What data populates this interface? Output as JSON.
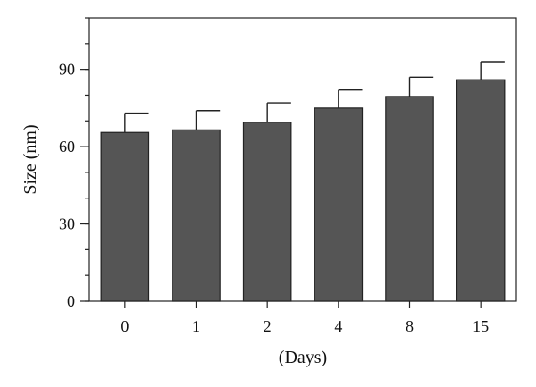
{
  "chart_data": {
    "type": "bar",
    "xlabel": "(Days)",
    "ylabel": "Size (nm)",
    "categories": [
      "0",
      "1",
      "2",
      "4",
      "8",
      "15"
    ],
    "values": [
      65.5,
      66.5,
      69.5,
      75,
      79.5,
      86
    ],
    "error_upper": [
      7.5,
      7.5,
      7.5,
      7,
      7.5,
      7
    ],
    "ylim": [
      0,
      110
    ],
    "yticks": [
      0,
      30,
      60,
      90
    ],
    "yticks_labels": [
      "0",
      "30",
      "60",
      "90"
    ],
    "ytick_minor_step": 10,
    "bar_color": "#555555",
    "grid": false
  }
}
